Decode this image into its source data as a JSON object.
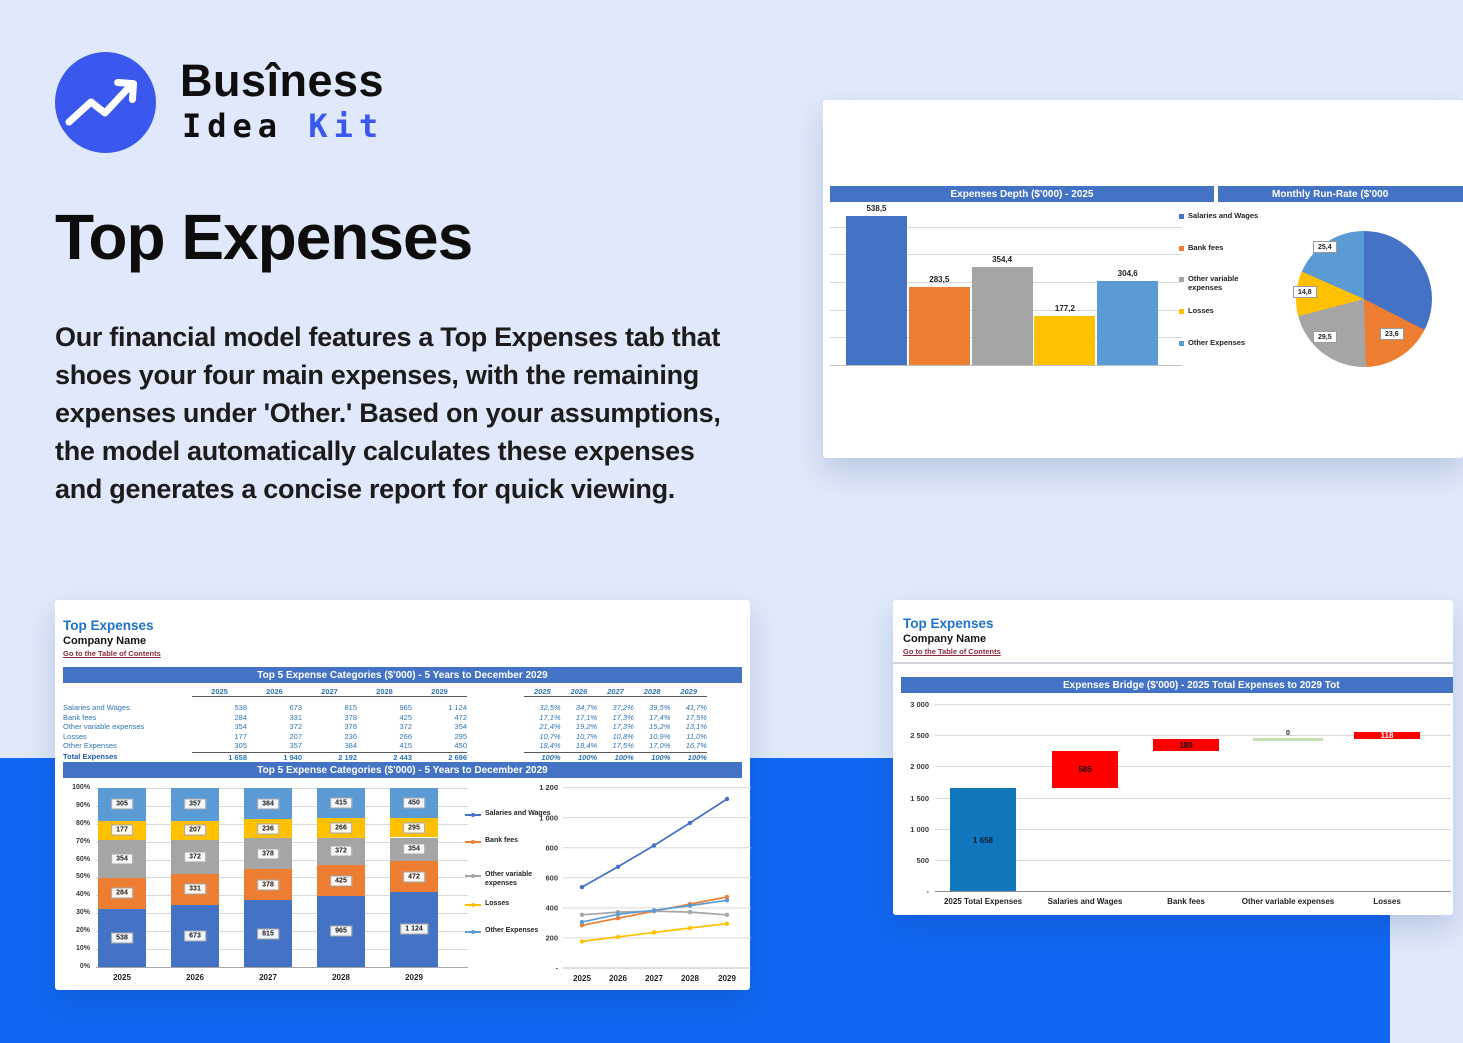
{
  "page": {
    "bg_top": "#dfe9fb",
    "bg_band": "#1167f2",
    "accent_blue": "#4472C4"
  },
  "logo": {
    "word1": "Busîness",
    "word2": "Idea",
    "word3": "Kit",
    "kit_color": "#3a57f0"
  },
  "hero": {
    "title": "Top Expenses",
    "paragraph": "Our financial model features a Top Expenses tab that shoes your four main expenses, with the remaining expenses under 'Other.' Based on your assumptions, the model automatically calculates these expenses and generates a concise report for quick viewing."
  },
  "series_colors": [
    "#4472C4",
    "#ED7D31",
    "#A5A5A5",
    "#FFC000",
    "#5B9BD5"
  ],
  "categories": [
    "Salaries and Wages",
    "Bank fees",
    "Other variable expenses",
    "Losses",
    "Other Expenses"
  ],
  "sheet1": {
    "sheet_title": "Top Expenses",
    "company": "Company Name",
    "link": "Go to the Table of Contents",
    "section_title": "Top 5 Expense Categories ($'000) - 5 Years to December 2029",
    "years": [
      "2025",
      "2026",
      "2027",
      "2028",
      "2029"
    ],
    "rows": [
      {
        "label": "Salaries and Wages",
        "values": [
          "538",
          "673",
          "815",
          "965",
          "1 124"
        ],
        "pcts": [
          "32,5%",
          "34,7%",
          "37,2%",
          "39,5%",
          "41,7%"
        ]
      },
      {
        "label": "Bank fees",
        "values": [
          "284",
          "331",
          "378",
          "425",
          "472"
        ],
        "pcts": [
          "17,1%",
          "17,1%",
          "17,3%",
          "17,4%",
          "17,5%"
        ]
      },
      {
        "label": "Other variable expenses",
        "values": [
          "354",
          "372",
          "378",
          "372",
          "354"
        ],
        "pcts": [
          "21,4%",
          "19,2%",
          "17,3%",
          "15,2%",
          "13,1%"
        ]
      },
      {
        "label": "Losses",
        "values": [
          "177",
          "207",
          "236",
          "266",
          "295"
        ],
        "pcts": [
          "10,7%",
          "10,7%",
          "10,8%",
          "10,9%",
          "11,0%"
        ]
      },
      {
        "label": "Other Expenses",
        "values": [
          "305",
          "357",
          "384",
          "415",
          "450"
        ],
        "pcts": [
          "18,4%",
          "18,4%",
          "17,5%",
          "17,0%",
          "16,7%"
        ]
      }
    ],
    "total": {
      "label": "Total Expenses",
      "values": [
        "1 658",
        "1 940",
        "2 192",
        "2 443",
        "2 696"
      ],
      "pcts": [
        "100%",
        "100%",
        "100%",
        "100%",
        "100%"
      ]
    },
    "pct_axis": [
      "100%",
      "90%",
      "80%",
      "70%",
      "60%",
      "50%",
      "40%",
      "30%",
      "20%",
      "10%",
      "0%"
    ]
  },
  "sheet2": {
    "sheet_title": "Top Expenses",
    "company": "Company Name",
    "link": "Go to the Table of Contents",
    "section_title": "Expenses Bridge ($'000) - 2025 Total Expenses to 2029 Tot"
  },
  "chart_data": [
    {
      "id": "expenses-depth",
      "type": "bar",
      "title": "Expenses Depth ($'000) - 2025",
      "categories": [
        "Salaries and Wages",
        "Bank fees",
        "Other variable expenses",
        "Losses",
        "Other Expenses"
      ],
      "values": [
        538.5,
        283.5,
        354.4,
        177.2,
        304.6
      ],
      "value_labels": [
        "538,5",
        "283,5",
        "354,4",
        "177,2",
        "304,6"
      ],
      "ylim": [
        0,
        550
      ],
      "grid": true,
      "legend_position": "right"
    },
    {
      "id": "monthly-run-rate",
      "type": "pie",
      "title": "Monthly Run-Rate ($'000",
      "categories": [
        "Salaries and Wages",
        "Bank fees",
        "Other variable expenses",
        "Losses",
        "Other Expenses"
      ],
      "values": [
        44.9,
        23.6,
        29.5,
        14.8,
        25.4
      ],
      "visible_labels": [
        "",
        "23,6",
        "29,5",
        "14,8",
        "25,4"
      ]
    },
    {
      "id": "top5-stacked",
      "type": "bar",
      "title": "Top 5 Expense Categories ($'000) - 5 Years to December 2029",
      "subtype": "stacked-100",
      "categories": [
        "2025",
        "2026",
        "2027",
        "2028",
        "2029"
      ],
      "series": [
        {
          "name": "Salaries and Wages",
          "values": [
            538,
            673,
            815,
            965,
            1124
          ],
          "labels": [
            "538",
            "673",
            "815",
            "965",
            "1 124"
          ],
          "pcts": [
            32.5,
            34.7,
            37.2,
            39.5,
            41.7
          ]
        },
        {
          "name": "Bank fees",
          "values": [
            284,
            331,
            378,
            425,
            472
          ],
          "labels": [
            "284",
            "331",
            "378",
            "425",
            "472"
          ],
          "pcts": [
            17.1,
            17.1,
            17.3,
            17.4,
            17.5
          ]
        },
        {
          "name": "Other variable expenses",
          "values": [
            354,
            372,
            378,
            372,
            354
          ],
          "labels": [
            "354",
            "372",
            "378",
            "372",
            "354"
          ],
          "pcts": [
            21.4,
            19.2,
            17.3,
            15.2,
            13.1
          ]
        },
        {
          "name": "Losses",
          "values": [
            177,
            207,
            236,
            266,
            295
          ],
          "labels": [
            "177",
            "207",
            "236",
            "266",
            "295"
          ],
          "pcts": [
            10.7,
            10.7,
            10.8,
            10.9,
            11.0
          ]
        },
        {
          "name": "Other Expenses",
          "values": [
            305,
            357,
            384,
            415,
            450
          ],
          "labels": [
            "305",
            "357",
            "384",
            "415",
            "450"
          ],
          "pcts": [
            18.4,
            18.4,
            17.5,
            17.0,
            16.7
          ]
        }
      ],
      "ylabel_ticks": [
        "100%",
        "90%",
        "80%",
        "70%",
        "60%",
        "50%",
        "40%",
        "30%",
        "20%",
        "10%",
        "0%"
      ]
    },
    {
      "id": "top5-lines",
      "type": "line",
      "x": [
        "2025",
        "2026",
        "2027",
        "2028",
        "2029"
      ],
      "series": [
        {
          "name": "Salaries and Wages",
          "values": [
            538,
            673,
            815,
            965,
            1124
          ]
        },
        {
          "name": "Bank fees",
          "values": [
            284,
            331,
            378,
            425,
            472
          ]
        },
        {
          "name": "Other variable expenses",
          "values": [
            354,
            372,
            378,
            372,
            354
          ]
        },
        {
          "name": "Losses",
          "values": [
            177,
            207,
            236,
            266,
            295
          ]
        },
        {
          "name": "Other Expenses",
          "values": [
            305,
            357,
            384,
            415,
            450
          ]
        }
      ],
      "y_ticks": [
        "1 200",
        "1 000",
        "800",
        "600",
        "400",
        "200",
        "-"
      ],
      "ylim": [
        0,
        1200
      ]
    },
    {
      "id": "expenses-bridge",
      "type": "waterfall",
      "title": "Expenses Bridge ($'000) - 2025 Total Expenses to 2029 Tot",
      "y_ticks": [
        "3 000",
        "2 500",
        "2 000",
        "1 500",
        "1 000",
        "500",
        "-"
      ],
      "ylim": [
        0,
        3000
      ],
      "columns": [
        {
          "label": "2025 Total Expenses",
          "value": 1658,
          "display": "1 658",
          "kind": "base"
        },
        {
          "label": "Salaries and Wages",
          "value": 585,
          "display": "585",
          "kind": "increase"
        },
        {
          "label": "Bank fees",
          "value": 189,
          "display": "189",
          "kind": "increase"
        },
        {
          "label": "Other variable expenses",
          "value": 0,
          "display": "0",
          "kind": "zero"
        },
        {
          "label": "Losses",
          "value": 118,
          "display": "118",
          "kind": "increase"
        }
      ],
      "colors": {
        "base": "#1177bd",
        "increase": "#fe0000",
        "zero": "#c6e0b4"
      }
    }
  ]
}
